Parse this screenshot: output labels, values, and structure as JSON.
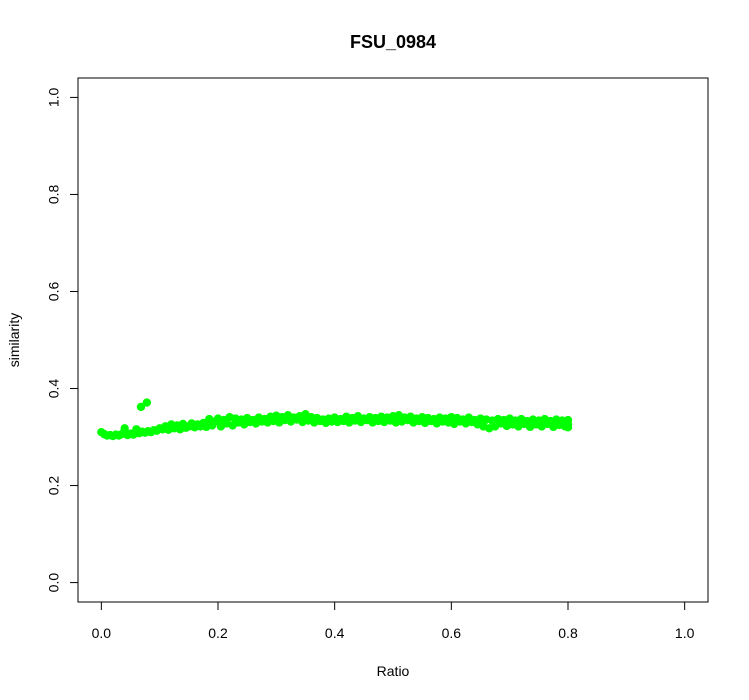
{
  "chart_data": {
    "type": "scatter",
    "title": "FSU_0984",
    "xlabel": "Ratio",
    "ylabel": "similarity",
    "xlim": [
      -0.04,
      1.04
    ],
    "ylim": [
      -0.04,
      1.04
    ],
    "x_ticks": [
      0.0,
      0.2,
      0.4,
      0.6,
      0.8,
      1.0
    ],
    "x_tick_labels": [
      "0.0",
      "0.2",
      "0.4",
      "0.6",
      "0.8",
      "1.0"
    ],
    "y_ticks": [
      0.0,
      0.2,
      0.4,
      0.6,
      0.8,
      1.0
    ],
    "y_tick_labels": [
      "0.0",
      "0.2",
      "0.4",
      "0.6",
      "0.8",
      "1.0"
    ],
    "grid": false,
    "legend": "none",
    "point_color": "#00ff00",
    "series": [
      {
        "points": [
          [
            0.0,
            0.31
          ],
          [
            0.005,
            0.306
          ],
          [
            0.01,
            0.303
          ],
          [
            0.015,
            0.304
          ],
          [
            0.02,
            0.302
          ],
          [
            0.025,
            0.305
          ],
          [
            0.03,
            0.303
          ],
          [
            0.035,
            0.306
          ],
          [
            0.04,
            0.318
          ],
          [
            0.045,
            0.304
          ],
          [
            0.05,
            0.307
          ],
          [
            0.055,
            0.305
          ],
          [
            0.06,
            0.316
          ],
          [
            0.065,
            0.308
          ],
          [
            0.068,
            0.362
          ],
          [
            0.07,
            0.311
          ],
          [
            0.075,
            0.309
          ],
          [
            0.078,
            0.371
          ],
          [
            0.08,
            0.312
          ],
          [
            0.085,
            0.31
          ],
          [
            0.09,
            0.314
          ],
          [
            0.095,
            0.313
          ],
          [
            0.1,
            0.318
          ],
          [
            0.105,
            0.316
          ],
          [
            0.11,
            0.322
          ],
          [
            0.115,
            0.315
          ],
          [
            0.12,
            0.326
          ],
          [
            0.125,
            0.318
          ],
          [
            0.13,
            0.324
          ],
          [
            0.135,
            0.316
          ],
          [
            0.14,
            0.327
          ],
          [
            0.145,
            0.319
          ],
          [
            0.15,
            0.322
          ],
          [
            0.155,
            0.328
          ],
          [
            0.16,
            0.32
          ],
          [
            0.165,
            0.326
          ],
          [
            0.17,
            0.322
          ],
          [
            0.175,
            0.329
          ],
          [
            0.18,
            0.321
          ],
          [
            0.185,
            0.337
          ],
          [
            0.19,
            0.324
          ],
          [
            0.195,
            0.332
          ],
          [
            0.2,
            0.338
          ],
          [
            0.205,
            0.322
          ],
          [
            0.21,
            0.335
          ],
          [
            0.215,
            0.328
          ],
          [
            0.22,
            0.341
          ],
          [
            0.225,
            0.324
          ],
          [
            0.23,
            0.338
          ],
          [
            0.235,
            0.33
          ],
          [
            0.24,
            0.336
          ],
          [
            0.245,
            0.326
          ],
          [
            0.25,
            0.339
          ],
          [
            0.255,
            0.331
          ],
          [
            0.26,
            0.335
          ],
          [
            0.265,
            0.328
          ],
          [
            0.27,
            0.34
          ],
          [
            0.275,
            0.332
          ],
          [
            0.28,
            0.337
          ],
          [
            0.285,
            0.33
          ],
          [
            0.29,
            0.342
          ],
          [
            0.295,
            0.333
          ],
          [
            0.3,
            0.344
          ],
          [
            0.305,
            0.33
          ],
          [
            0.31,
            0.341
          ],
          [
            0.315,
            0.335
          ],
          [
            0.32,
            0.345
          ],
          [
            0.325,
            0.332
          ],
          [
            0.33,
            0.34
          ],
          [
            0.335,
            0.336
          ],
          [
            0.34,
            0.343
          ],
          [
            0.345,
            0.331
          ],
          [
            0.35,
            0.347
          ],
          [
            0.355,
            0.334
          ],
          [
            0.36,
            0.341
          ],
          [
            0.365,
            0.33
          ],
          [
            0.37,
            0.339
          ],
          [
            0.375,
            0.333
          ],
          [
            0.38,
            0.336
          ],
          [
            0.385,
            0.329
          ],
          [
            0.39,
            0.338
          ],
          [
            0.395,
            0.332
          ],
          [
            0.4,
            0.34
          ],
          [
            0.405,
            0.331
          ],
          [
            0.41,
            0.337
          ],
          [
            0.415,
            0.333
          ],
          [
            0.42,
            0.342
          ],
          [
            0.425,
            0.33
          ],
          [
            0.43,
            0.339
          ],
          [
            0.435,
            0.334
          ],
          [
            0.44,
            0.343
          ],
          [
            0.445,
            0.331
          ],
          [
            0.45,
            0.338
          ],
          [
            0.455,
            0.335
          ],
          [
            0.46,
            0.341
          ],
          [
            0.465,
            0.33
          ],
          [
            0.47,
            0.339
          ],
          [
            0.475,
            0.333
          ],
          [
            0.48,
            0.342
          ],
          [
            0.485,
            0.331
          ],
          [
            0.49,
            0.34
          ],
          [
            0.495,
            0.334
          ],
          [
            0.5,
            0.343
          ],
          [
            0.505,
            0.33
          ],
          [
            0.51,
            0.345
          ],
          [
            0.515,
            0.332
          ],
          [
            0.52,
            0.34
          ],
          [
            0.525,
            0.335
          ],
          [
            0.53,
            0.342
          ],
          [
            0.535,
            0.33
          ],
          [
            0.54,
            0.338
          ],
          [
            0.545,
            0.333
          ],
          [
            0.55,
            0.341
          ],
          [
            0.555,
            0.329
          ],
          [
            0.56,
            0.339
          ],
          [
            0.565,
            0.333
          ],
          [
            0.57,
            0.337
          ],
          [
            0.575,
            0.328
          ],
          [
            0.58,
            0.34
          ],
          [
            0.585,
            0.332
          ],
          [
            0.59,
            0.338
          ],
          [
            0.595,
            0.33
          ],
          [
            0.6,
            0.341
          ],
          [
            0.605,
            0.327
          ],
          [
            0.61,
            0.339
          ],
          [
            0.615,
            0.332
          ],
          [
            0.62,
            0.336
          ],
          [
            0.625,
            0.328
          ],
          [
            0.63,
            0.34
          ],
          [
            0.635,
            0.331
          ],
          [
            0.64,
            0.335
          ],
          [
            0.645,
            0.326
          ],
          [
            0.65,
            0.338
          ],
          [
            0.655,
            0.322
          ],
          [
            0.66,
            0.336
          ],
          [
            0.665,
            0.318
          ],
          [
            0.67,
            0.334
          ],
          [
            0.675,
            0.322
          ],
          [
            0.68,
            0.337
          ],
          [
            0.685,
            0.328
          ],
          [
            0.69,
            0.335
          ],
          [
            0.695,
            0.323
          ],
          [
            0.7,
            0.338
          ],
          [
            0.705,
            0.326
          ],
          [
            0.71,
            0.334
          ],
          [
            0.715,
            0.322
          ],
          [
            0.72,
            0.337
          ],
          [
            0.725,
            0.327
          ],
          [
            0.73,
            0.333
          ],
          [
            0.735,
            0.321
          ],
          [
            0.74,
            0.336
          ],
          [
            0.745,
            0.326
          ],
          [
            0.75,
            0.334
          ],
          [
            0.755,
            0.322
          ],
          [
            0.76,
            0.337
          ],
          [
            0.765,
            0.327
          ],
          [
            0.77,
            0.333
          ],
          [
            0.775,
            0.321
          ],
          [
            0.78,
            0.336
          ],
          [
            0.785,
            0.325
          ],
          [
            0.79,
            0.334
          ],
          [
            0.795,
            0.322
          ],
          [
            0.8,
            0.335
          ],
          [
            0.8,
            0.326
          ],
          [
            0.8,
            0.32
          ]
        ]
      }
    ]
  }
}
